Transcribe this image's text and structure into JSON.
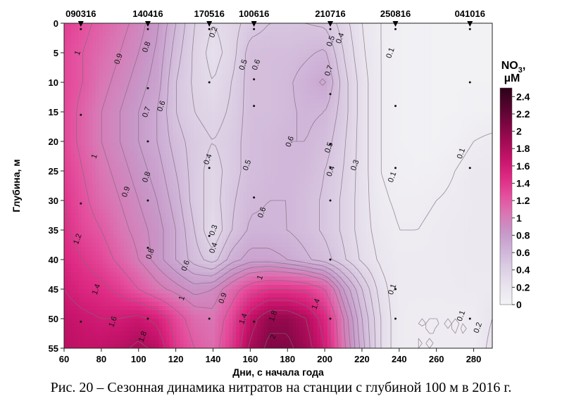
{
  "caption": "Рис. 20 – Сезонная динамика нитратов на станции с глубиной 100 м в 2016 г.",
  "chart_data": {
    "type": "contour",
    "xlabel": "Дни, с начала года",
    "ylabel": "Глубина, м",
    "xlim": [
      60,
      290
    ],
    "ylim": [
      0,
      55
    ],
    "y_inverted": true,
    "xticks": [
      "60",
      "80",
      "100",
      "120",
      "140",
      "160",
      "180",
      "200",
      "220",
      "240",
      "260",
      "280"
    ],
    "yticks": [
      "0",
      "5",
      "10",
      "15",
      "20",
      "25",
      "30",
      "35",
      "40",
      "45",
      "50",
      "55"
    ],
    "stations": [
      {
        "label": "090316",
        "day": 69
      },
      {
        "label": "140416",
        "day": 105
      },
      {
        "label": "170516",
        "day": 138
      },
      {
        "label": "100616",
        "day": 162
      },
      {
        "label": "210716",
        "day": 203
      },
      {
        "label": "250816",
        "day": 238
      },
      {
        "label": "041016",
        "day": 278
      }
    ],
    "sample_depths": [
      [
        69,
        1,
        15.5,
        30.5,
        50.5
      ],
      [
        105,
        1,
        11,
        20,
        30,
        38,
        50
      ],
      [
        138,
        1,
        10,
        24.5,
        36,
        50
      ],
      [
        162,
        1,
        9.5,
        14,
        29.5,
        50.5
      ],
      [
        203,
        1,
        12,
        20.5,
        24.5,
        30,
        40,
        50
      ],
      [
        238,
        1,
        14,
        24.5,
        45,
        50
      ],
      [
        278,
        1,
        10,
        24.5,
        50
      ]
    ],
    "grid_days": [
      60,
      70,
      80,
      90,
      100,
      110,
      120,
      130,
      140,
      150,
      160,
      170,
      180,
      190,
      200,
      210,
      220,
      230,
      240,
      250,
      260,
      270,
      280,
      290
    ],
    "grid_depths": [
      0,
      5,
      10,
      15,
      20,
      25,
      30,
      35,
      40,
      45,
      50,
      55
    ],
    "values": [
      [
        1.35,
        1.25,
        1.15,
        1.05,
        0.95,
        0.82,
        0.6,
        0.4,
        0.3,
        0.35,
        0.45,
        0.5,
        0.5,
        0.5,
        0.48,
        0.35,
        0.2,
        0.1,
        0.05,
        0.04,
        0.03,
        0.03,
        0.03,
        0.03
      ],
      [
        1.3,
        1.2,
        1.1,
        1.0,
        0.9,
        0.78,
        0.55,
        0.38,
        0.25,
        0.35,
        0.55,
        0.55,
        0.55,
        0.58,
        0.62,
        0.4,
        0.22,
        0.1,
        0.05,
        0.04,
        0.03,
        0.03,
        0.03,
        0.03
      ],
      [
        1.3,
        1.2,
        1.05,
        0.95,
        0.85,
        0.75,
        0.5,
        0.38,
        0.3,
        0.4,
        0.55,
        0.55,
        0.58,
        0.65,
        0.72,
        0.45,
        0.25,
        0.1,
        0.05,
        0.04,
        0.03,
        0.03,
        0.03,
        0.03
      ],
      [
        1.3,
        1.15,
        1.0,
        0.9,
        0.8,
        0.7,
        0.5,
        0.4,
        0.35,
        0.42,
        0.55,
        0.55,
        0.58,
        0.62,
        0.6,
        0.45,
        0.25,
        0.1,
        0.05,
        0.04,
        0.03,
        0.03,
        0.05,
        0.05
      ],
      [
        1.3,
        1.15,
        1.0,
        0.9,
        0.8,
        0.7,
        0.55,
        0.45,
        0.4,
        0.45,
        0.55,
        0.58,
        0.6,
        0.6,
        0.55,
        0.42,
        0.25,
        0.1,
        0.05,
        0.04,
        0.03,
        0.05,
        0.1,
        0.12
      ],
      [
        1.35,
        1.2,
        1.05,
        0.95,
        0.85,
        0.75,
        0.6,
        0.45,
        0.35,
        0.45,
        0.55,
        0.58,
        0.6,
        0.58,
        0.5,
        0.4,
        0.25,
        0.1,
        0.06,
        0.05,
        0.06,
        0.1,
        0.15,
        0.15
      ],
      [
        1.4,
        1.25,
        1.1,
        1.0,
        0.9,
        0.8,
        0.65,
        0.45,
        0.35,
        0.48,
        0.58,
        0.6,
        0.6,
        0.55,
        0.48,
        0.38,
        0.25,
        0.12,
        0.08,
        0.08,
        0.1,
        0.12,
        0.15,
        0.15
      ],
      [
        1.45,
        1.3,
        1.2,
        1.05,
        0.95,
        0.85,
        0.7,
        0.5,
        0.3,
        0.5,
        0.62,
        0.62,
        0.6,
        0.55,
        0.48,
        0.38,
        0.25,
        0.15,
        0.1,
        0.1,
        0.12,
        0.14,
        0.15,
        0.15
      ],
      [
        1.5,
        1.4,
        1.3,
        1.15,
        1.0,
        0.85,
        0.7,
        0.55,
        0.45,
        0.65,
        0.75,
        0.75,
        0.7,
        0.62,
        0.55,
        0.42,
        0.28,
        0.18,
        0.12,
        0.12,
        0.12,
        0.14,
        0.15,
        0.15
      ],
      [
        1.6,
        1.5,
        1.45,
        1.35,
        1.2,
        1.05,
        0.95,
        0.85,
        0.9,
        1.1,
        1.3,
        1.4,
        1.4,
        1.35,
        1.2,
        0.8,
        0.5,
        0.25,
        0.12,
        0.12,
        0.12,
        0.13,
        0.14,
        0.14
      ],
      [
        1.7,
        1.65,
        1.6,
        1.6,
        1.65,
        1.55,
        1.3,
        1.1,
        1.05,
        1.3,
        1.7,
        1.95,
        1.95,
        1.8,
        1.5,
        1.0,
        0.6,
        0.3,
        0.12,
        0.1,
        0.1,
        0.1,
        0.1,
        0.2
      ],
      [
        1.75,
        1.7,
        1.7,
        1.75,
        1.85,
        1.75,
        1.4,
        1.2,
        1.1,
        1.4,
        1.85,
        2.05,
        2.05,
        1.9,
        1.6,
        1.05,
        0.65,
        0.3,
        0.12,
        0.1,
        0.1,
        0.1,
        0.1,
        0.25
      ]
    ],
    "contour_levels": [
      0.1,
      0.2,
      0.3,
      0.4,
      0.5,
      0.6,
      0.7,
      0.8,
      0.9,
      1,
      1.2,
      1.4,
      1.6,
      1.8,
      2
    ],
    "contour_labels": [
      {
        "text": "1",
        "day": 67,
        "depth": 5
      },
      {
        "text": "0.9",
        "day": 89,
        "depth": 6
      },
      {
        "text": "0.8",
        "day": 104,
        "depth": 4
      },
      {
        "text": "0.2",
        "day": 140,
        "depth": 1.5
      },
      {
        "text": "0.5",
        "day": 156,
        "depth": 7
      },
      {
        "text": "0.6",
        "day": 163,
        "depth": 7
      },
      {
        "text": "0.5",
        "day": 203,
        "depth": 3
      },
      {
        "text": "0.4",
        "day": 208,
        "depth": 2.5
      },
      {
        "text": "0.1",
        "day": 235,
        "depth": 5
      },
      {
        "text": "0.7",
        "day": 202,
        "depth": 8
      },
      {
        "text": "0.7",
        "day": 104,
        "depth": 15
      },
      {
        "text": "0.6",
        "day": 112,
        "depth": 14
      },
      {
        "text": "0.6",
        "day": 181,
        "depth": 20
      },
      {
        "text": "0.5",
        "day": 202,
        "depth": 21
      },
      {
        "text": "0.4",
        "day": 137,
        "depth": 23
      },
      {
        "text": "0.5",
        "day": 158,
        "depth": 24
      },
      {
        "text": "0.4",
        "day": 203,
        "depth": 25
      },
      {
        "text": "0.3",
        "day": 216,
        "depth": 24
      },
      {
        "text": "0.1",
        "day": 236,
        "depth": 26
      },
      {
        "text": "0.1",
        "day": 273,
        "depth": 22
      },
      {
        "text": "1",
        "day": 76,
        "depth": 22.5
      },
      {
        "text": "0.8",
        "day": 104,
        "depth": 26
      },
      {
        "text": "0.9",
        "day": 93,
        "depth": 28.5
      },
      {
        "text": "0.6",
        "day": 166,
        "depth": 32
      },
      {
        "text": "0.3",
        "day": 140,
        "depth": 35
      },
      {
        "text": "0.4",
        "day": 140,
        "depth": 38
      },
      {
        "text": "1.2",
        "day": 67,
        "depth": 36.5
      },
      {
        "text": "0.8",
        "day": 106,
        "depth": 39
      },
      {
        "text": "0.6",
        "day": 125,
        "depth": 41
      },
      {
        "text": "1",
        "day": 165,
        "depth": 43
      },
      {
        "text": "1.4",
        "day": 77,
        "depth": 45
      },
      {
        "text": "1",
        "day": 123,
        "depth": 46.5
      },
      {
        "text": "0.9",
        "day": 145,
        "depth": 46.5
      },
      {
        "text": "1.4",
        "day": 195,
        "depth": 47.5
      },
      {
        "text": "0.1",
        "day": 236,
        "depth": 45
      },
      {
        "text": "1.6",
        "day": 86,
        "depth": 50.5
      },
      {
        "text": "1.4",
        "day": 156,
        "depth": 50
      },
      {
        "text": "1.8",
        "day": 172,
        "depth": 49.5
      },
      {
        "text": "0.1",
        "day": 273,
        "depth": 49.5
      },
      {
        "text": "1.8",
        "day": 102,
        "depth": 53
      },
      {
        "text": "2",
        "day": 172,
        "depth": 53
      },
      {
        "text": "0.2",
        "day": 282,
        "depth": 51.5
      }
    ],
    "colorbar": {
      "title": "NO3, µM",
      "title_main": "NO",
      "title_sub": "3",
      "title_suffix": ",",
      "title_unit": "µM",
      "ticks": [
        "2.4",
        "2.2",
        "2",
        "1.8",
        "1.6",
        "1.4",
        "1.2",
        "1",
        "0.8",
        "0.6",
        "0.4",
        "0.2",
        "0"
      ],
      "range": [
        0,
        2.5
      ],
      "colors": [
        "#f3f3f5",
        "#e9e4ee",
        "#dccfe4",
        "#cfb4d8",
        "#c797c8",
        "#d977b4",
        "#e4509e",
        "#de2b84",
        "#c8146c",
        "#a30b55",
        "#7a0641",
        "#52042d",
        "#2c0218"
      ]
    }
  }
}
